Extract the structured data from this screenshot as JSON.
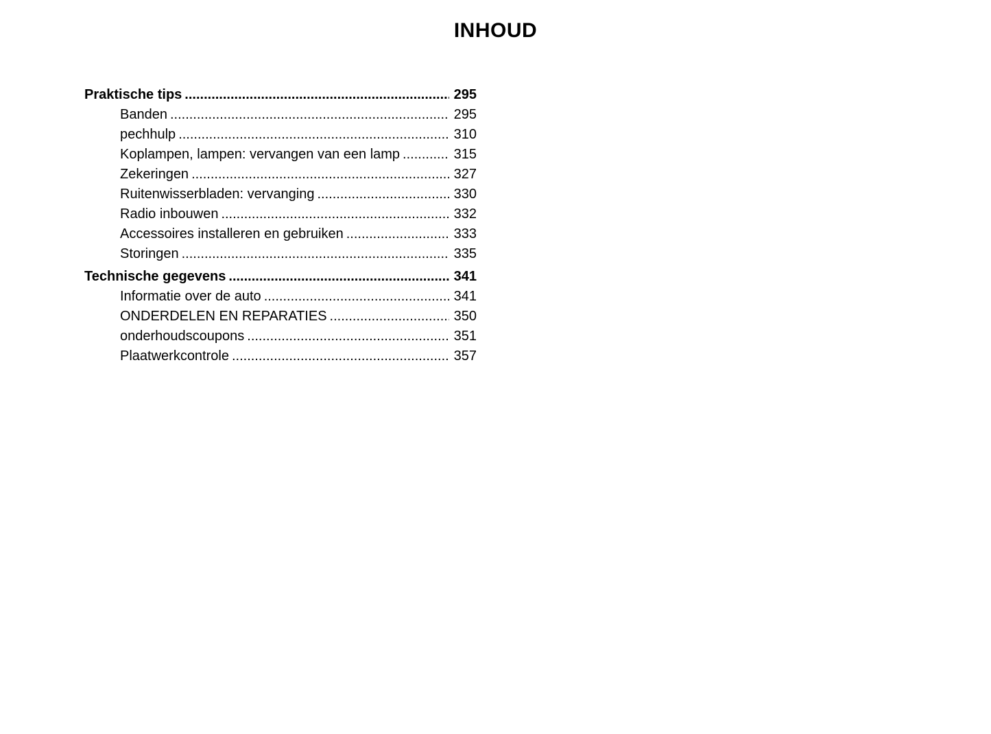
{
  "page": {
    "title": "INHOUD"
  },
  "toc": {
    "entries": [
      {
        "label": "Praktische tips",
        "page": "295",
        "level": 0,
        "bold": true,
        "section_start": false
      },
      {
        "label": "Banden",
        "page": "295",
        "level": 1,
        "bold": false,
        "section_start": false
      },
      {
        "label": "pechhulp",
        "page": "310",
        "level": 1,
        "bold": false,
        "section_start": false
      },
      {
        "label": "Koplampen, lampen: vervangen van een lamp",
        "page": "315",
        "level": 1,
        "bold": false,
        "section_start": false
      },
      {
        "label": "Zekeringen",
        "page": "327",
        "level": 1,
        "bold": false,
        "section_start": false
      },
      {
        "label": "Ruitenwisserbladen: vervanging",
        "page": "330",
        "level": 1,
        "bold": false,
        "section_start": false
      },
      {
        "label": "Radio inbouwen",
        "page": "332",
        "level": 1,
        "bold": false,
        "section_start": false
      },
      {
        "label": "Accessoires installeren en gebruiken",
        "page": "333",
        "level": 1,
        "bold": false,
        "section_start": false
      },
      {
        "label": "Storingen",
        "page": "335",
        "level": 1,
        "bold": false,
        "section_start": false
      },
      {
        "label": "Technische gegevens",
        "page": "341",
        "level": 0,
        "bold": true,
        "section_start": true
      },
      {
        "label": "Informatie over de auto",
        "page": "341",
        "level": 1,
        "bold": false,
        "section_start": false
      },
      {
        "label": "ONDERDELEN EN REPARATIES",
        "page": "350",
        "level": 1,
        "bold": false,
        "section_start": false
      },
      {
        "label": "onderhoudscoupons",
        "page": "351",
        "level": 1,
        "bold": false,
        "section_start": false
      },
      {
        "label": "Plaatwerkcontrole",
        "page": "357",
        "level": 1,
        "bold": false,
        "section_start": false
      }
    ]
  },
  "colors": {
    "text": "#000000",
    "background": "#ffffff"
  }
}
